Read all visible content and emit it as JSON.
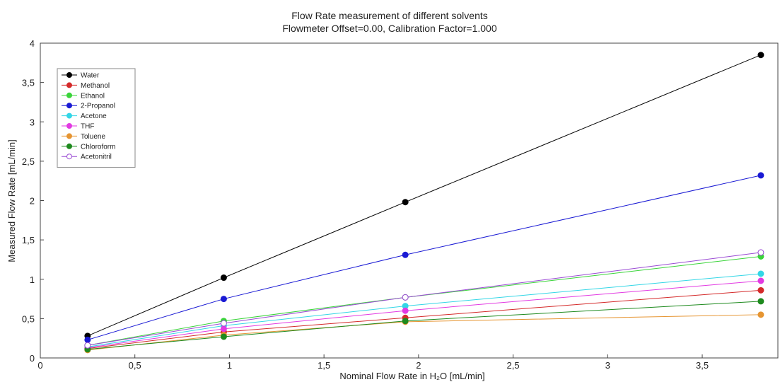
{
  "chart_data": {
    "type": "line",
    "title": "Flow Rate measurement of different solvents",
    "subtitle": "Flowmeter Offset=0.00, Calibration Factor=1.000",
    "xlabel": "Nominal Flow Rate in H₂O [mL/min]",
    "ylabel": "Measured Flow Rate [mL/min]",
    "xlim": [
      0,
      3.9
    ],
    "ylim": [
      0,
      4
    ],
    "x_ticks": [
      0,
      0.5,
      1,
      1.5,
      2,
      2.5,
      3,
      3.5
    ],
    "x_tick_labels": [
      "0",
      "0,5",
      "1",
      "1,5",
      "2",
      "2,5",
      "3",
      "3,5"
    ],
    "y_ticks": [
      0,
      0.5,
      1,
      1.5,
      2,
      2.5,
      3,
      3.5,
      4
    ],
    "y_tick_labels": [
      "0",
      "0,5",
      "1",
      "1,5",
      "2",
      "2,5",
      "3",
      "3,5",
      "4"
    ],
    "grid": false,
    "legend_position": "top-left",
    "x": [
      0.25,
      0.97,
      1.93,
      3.81
    ],
    "series": [
      {
        "name": "Water",
        "color": "#000000",
        "marker": "filled",
        "values": [
          0.28,
          1.02,
          1.98,
          3.85
        ]
      },
      {
        "name": "Methanol",
        "color": "#d42a2a",
        "marker": "filled",
        "values": [
          0.12,
          0.33,
          0.51,
          0.86
        ]
      },
      {
        "name": "Ethanol",
        "color": "#3ad43a",
        "marker": "filled",
        "values": [
          0.16,
          0.47,
          0.77,
          1.29
        ]
      },
      {
        "name": "2-Propanol",
        "color": "#1a1ad4",
        "marker": "filled",
        "values": [
          0.23,
          0.75,
          1.31,
          2.32
        ]
      },
      {
        "name": "Acetone",
        "color": "#33d6e6",
        "marker": "filled",
        "values": [
          0.14,
          0.41,
          0.66,
          1.07
        ]
      },
      {
        "name": "THF",
        "color": "#e23ae2",
        "marker": "filled",
        "values": [
          0.13,
          0.37,
          0.6,
          0.98
        ]
      },
      {
        "name": "Toluene",
        "color": "#e69532",
        "marker": "filled",
        "values": [
          0.1,
          0.29,
          0.46,
          0.55
        ]
      },
      {
        "name": "Chloroform",
        "color": "#1e8a1e",
        "marker": "filled",
        "values": [
          0.11,
          0.27,
          0.47,
          0.72
        ]
      },
      {
        "name": "Acetonitril",
        "color": "#9a4ad4",
        "marker": "open",
        "values": [
          0.16,
          0.44,
          0.77,
          1.34
        ]
      }
    ]
  }
}
